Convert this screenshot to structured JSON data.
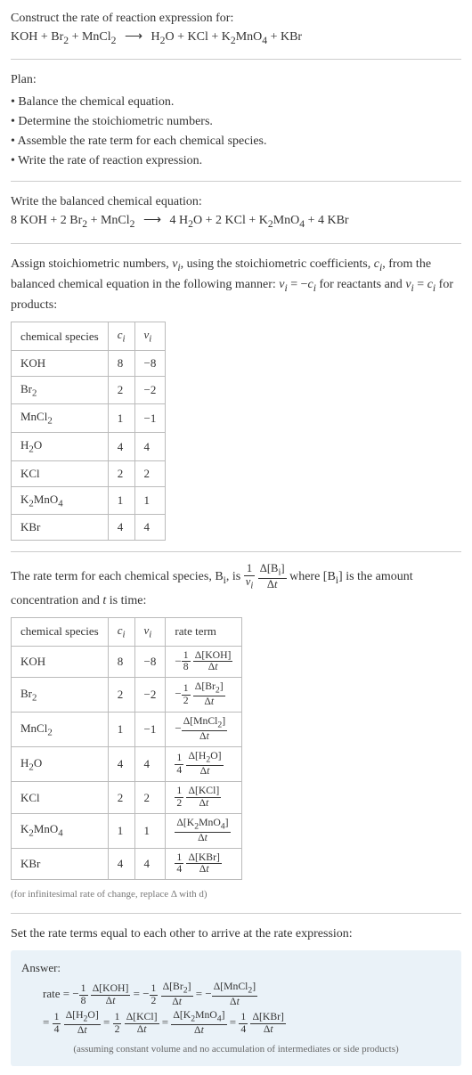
{
  "header": {
    "prompt": "Construct the rate of reaction expression for:",
    "equation_html": "KOH + Br<sub>2</sub> + MnCl<sub>2</sub> <span class='arrow'>⟶</span> H<sub>2</sub>O + KCl + K<sub>2</sub>MnO<sub>4</sub> + KBr"
  },
  "plan": {
    "title": "Plan:",
    "items": [
      "• Balance the chemical equation.",
      "• Determine the stoichiometric numbers.",
      "• Assemble the rate term for each chemical species.",
      "• Write the rate of reaction expression."
    ]
  },
  "balanced": {
    "intro": "Write the balanced chemical equation:",
    "equation_html": "8 KOH + 2 Br<sub>2</sub> + MnCl<sub>2</sub> <span class='arrow'>⟶</span> 4 H<sub>2</sub>O + 2 KCl + K<sub>2</sub>MnO<sub>4</sub> + 4 KBr"
  },
  "stoich_intro_html": "Assign stoichiometric numbers, <span class='ital'>ν<sub>i</sub></span>, using the stoichiometric coefficients, <span class='ital'>c<sub>i</sub></span>, from the balanced chemical equation in the following manner: <span class='ital'>ν<sub>i</sub></span> = −<span class='ital'>c<sub>i</sub></span> for reactants and <span class='ital'>ν<sub>i</sub></span> = <span class='ital'>c<sub>i</sub></span> for products:",
  "table1": {
    "headers": [
      "chemical species",
      "c_i",
      "ν_i"
    ],
    "rows": [
      {
        "species_html": "KOH",
        "c": "8",
        "nu": "−8"
      },
      {
        "species_html": "Br<sub>2</sub>",
        "c": "2",
        "nu": "−2"
      },
      {
        "species_html": "MnCl<sub>2</sub>",
        "c": "1",
        "nu": "−1"
      },
      {
        "species_html": "H<sub>2</sub>O",
        "c": "4",
        "nu": "4"
      },
      {
        "species_html": "KCl",
        "c": "2",
        "nu": "2"
      },
      {
        "species_html": "K<sub>2</sub>MnO<sub>4</sub>",
        "c": "1",
        "nu": "1"
      },
      {
        "species_html": "KBr",
        "c": "4",
        "nu": "4"
      }
    ]
  },
  "rate_intro_html": "The rate term for each chemical species, B<sub>i</sub>, is <span class='frac'><span class='num'>1</span><span class='den'><span class='ital'>ν<sub>i</sub></span></span></span> <span class='frac'><span class='num'>Δ[B<sub>i</sub>]</span><span class='den'>Δ<span class='ital'>t</span></span></span> where [B<sub>i</sub>] is the amount concentration and <span class='ital'>t</span> is time:",
  "table2": {
    "headers": [
      "chemical species",
      "c_i",
      "ν_i",
      "rate term"
    ],
    "rows": [
      {
        "species_html": "KOH",
        "c": "8",
        "nu": "−8",
        "rate_html": "−<span class='frac'><span class='num'>1</span><span class='den'>8</span></span> <span class='frac'><span class='num'>Δ[KOH]</span><span class='den'>Δ<span class='ital'>t</span></span></span>"
      },
      {
        "species_html": "Br<sub>2</sub>",
        "c": "2",
        "nu": "−2",
        "rate_html": "−<span class='frac'><span class='num'>1</span><span class='den'>2</span></span> <span class='frac'><span class='num'>Δ[Br<sub>2</sub>]</span><span class='den'>Δ<span class='ital'>t</span></span></span>"
      },
      {
        "species_html": "MnCl<sub>2</sub>",
        "c": "1",
        "nu": "−1",
        "rate_html": "−<span class='frac'><span class='num'>Δ[MnCl<sub>2</sub>]</span><span class='den'>Δ<span class='ital'>t</span></span></span>"
      },
      {
        "species_html": "H<sub>2</sub>O",
        "c": "4",
        "nu": "4",
        "rate_html": "<span class='frac'><span class='num'>1</span><span class='den'>4</span></span> <span class='frac'><span class='num'>Δ[H<sub>2</sub>O]</span><span class='den'>Δ<span class='ital'>t</span></span></span>"
      },
      {
        "species_html": "KCl",
        "c": "2",
        "nu": "2",
        "rate_html": "<span class='frac'><span class='num'>1</span><span class='den'>2</span></span> <span class='frac'><span class='num'>Δ[KCl]</span><span class='den'>Δ<span class='ital'>t</span></span></span>"
      },
      {
        "species_html": "K<sub>2</sub>MnO<sub>4</sub>",
        "c": "1",
        "nu": "1",
        "rate_html": "<span class='frac'><span class='num'>Δ[K<sub>2</sub>MnO<sub>4</sub>]</span><span class='den'>Δ<span class='ital'>t</span></span></span>"
      },
      {
        "species_html": "KBr",
        "c": "4",
        "nu": "4",
        "rate_html": "<span class='frac'><span class='num'>1</span><span class='den'>4</span></span> <span class='frac'><span class='num'>Δ[KBr]</span><span class='den'>Δ<span class='ital'>t</span></span></span>"
      }
    ]
  },
  "infinitesimal_note": "(for infinitesimal rate of change, replace Δ with d)",
  "final_intro": "Set the rate terms equal to each other to arrive at the rate expression:",
  "answer": {
    "label": "Answer:",
    "line1_html": "rate = −<span class='frac'><span class='num'>1</span><span class='den'>8</span></span> <span class='frac'><span class='num'>Δ[KOH]</span><span class='den'>Δ<span class='ital'>t</span></span></span> = −<span class='frac'><span class='num'>1</span><span class='den'>2</span></span> <span class='frac'><span class='num'>Δ[Br<sub>2</sub>]</span><span class='den'>Δ<span class='ital'>t</span></span></span> = −<span class='frac'><span class='num'>Δ[MnCl<sub>2</sub>]</span><span class='den'>Δ<span class='ital'>t</span></span></span>",
    "line2_html": "= <span class='frac'><span class='num'>1</span><span class='den'>4</span></span> <span class='frac'><span class='num'>Δ[H<sub>2</sub>O]</span><span class='den'>Δ<span class='ital'>t</span></span></span> = <span class='frac'><span class='num'>1</span><span class='den'>2</span></span> <span class='frac'><span class='num'>Δ[KCl]</span><span class='den'>Δ<span class='ital'>t</span></span></span> = <span class='frac'><span class='num'>Δ[K<sub>2</sub>MnO<sub>4</sub>]</span><span class='den'>Δ<span class='ital'>t</span></span></span> = <span class='frac'><span class='num'>1</span><span class='den'>4</span></span> <span class='frac'><span class='num'>Δ[KBr]</span><span class='den'>Δ<span class='ital'>t</span></span></span>",
    "assume": "(assuming constant volume and no accumulation of intermediates or side products)"
  },
  "colors": {
    "text": "#333333",
    "border": "#bbbbbb",
    "hr": "#cccccc",
    "answer_bg": "#eaf2f8",
    "note": "#777777"
  }
}
